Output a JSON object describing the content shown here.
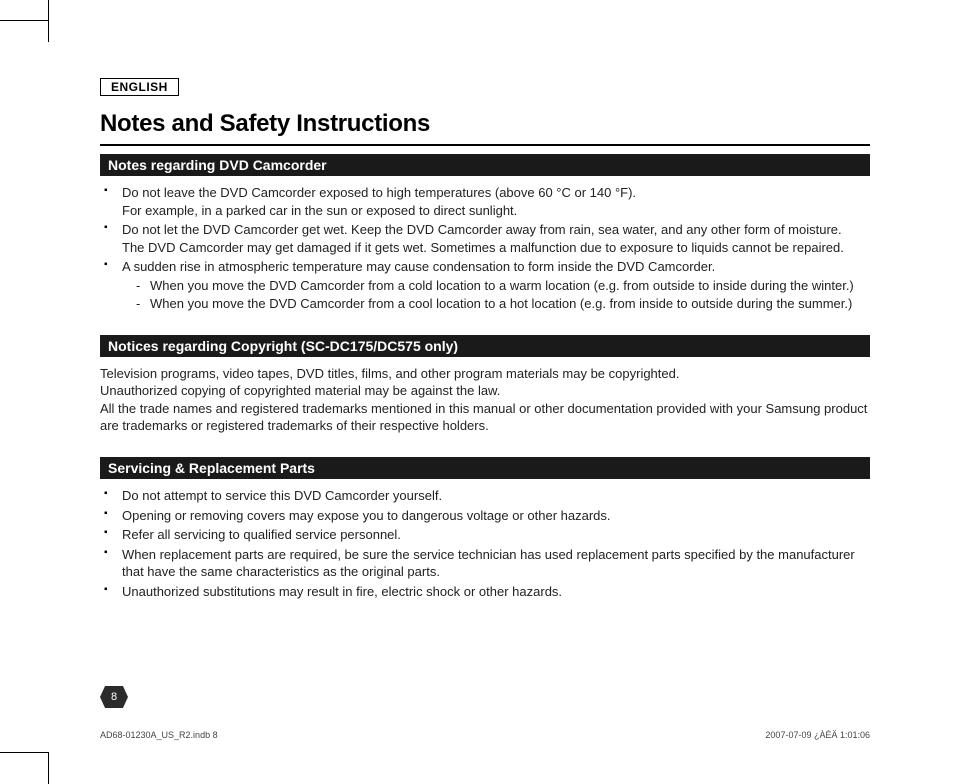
{
  "language_label": "ENGLISH",
  "title": "Notes and Safety Instructions",
  "sections": [
    {
      "header": "Notes regarding DVD Camcorder",
      "bullets": [
        {
          "lines": [
            "Do not leave the DVD Camcorder exposed to high temperatures (above 60 °C or 140 °F).",
            "For example, in a parked car in the sun or exposed to direct sunlight."
          ]
        },
        {
          "lines": [
            "Do not let the DVD Camcorder get wet. Keep the DVD Camcorder away from rain, sea water, and any other form of moisture.",
            "The DVD Camcorder may get damaged if it gets wet. Sometimes a malfunction due to exposure to liquids cannot be repaired."
          ]
        },
        {
          "lines": [
            "A sudden rise in atmospheric temperature may cause condensation to form inside the DVD Camcorder."
          ],
          "sub": [
            "When you move the DVD Camcorder from a cold location to a warm location (e.g. from outside to inside during the winter.)",
            "When you move the DVD Camcorder from a cool location to a hot location (e.g. from inside to outside during the summer.)"
          ]
        }
      ]
    },
    {
      "header": "Notices regarding Copyright (SC-DC175/DC575 only)",
      "paragraph": "Television programs, video tapes, DVD titles, films, and other program materials may be copyrighted.\nUnauthorized copying of copyrighted material may be against the law.\nAll the trade names and registered trademarks mentioned in this manual or other documentation provided with your Samsung product are trademarks or registered trademarks of their respective holders."
    },
    {
      "header": "Servicing & Replacement Parts",
      "bullets": [
        {
          "lines": [
            "Do not attempt to service this DVD Camcorder yourself."
          ]
        },
        {
          "lines": [
            "Opening or removing covers may expose you to dangerous voltage or other hazards."
          ]
        },
        {
          "lines": [
            "Refer all servicing to qualified service personnel."
          ]
        },
        {
          "lines": [
            "When replacement parts are required, be sure the service technician has used replacement parts specified by the manufacturer that have the same characteristics as the original parts."
          ]
        },
        {
          "lines": [
            "Unauthorized substitutions may result in fire, electric shock or other hazards."
          ]
        }
      ]
    }
  ],
  "page_number": "8",
  "footer_left": "AD68-01230A_US_R2.indb   8",
  "footer_right": "2007-07-09   ¿ÀÈÄ 1:01:06"
}
